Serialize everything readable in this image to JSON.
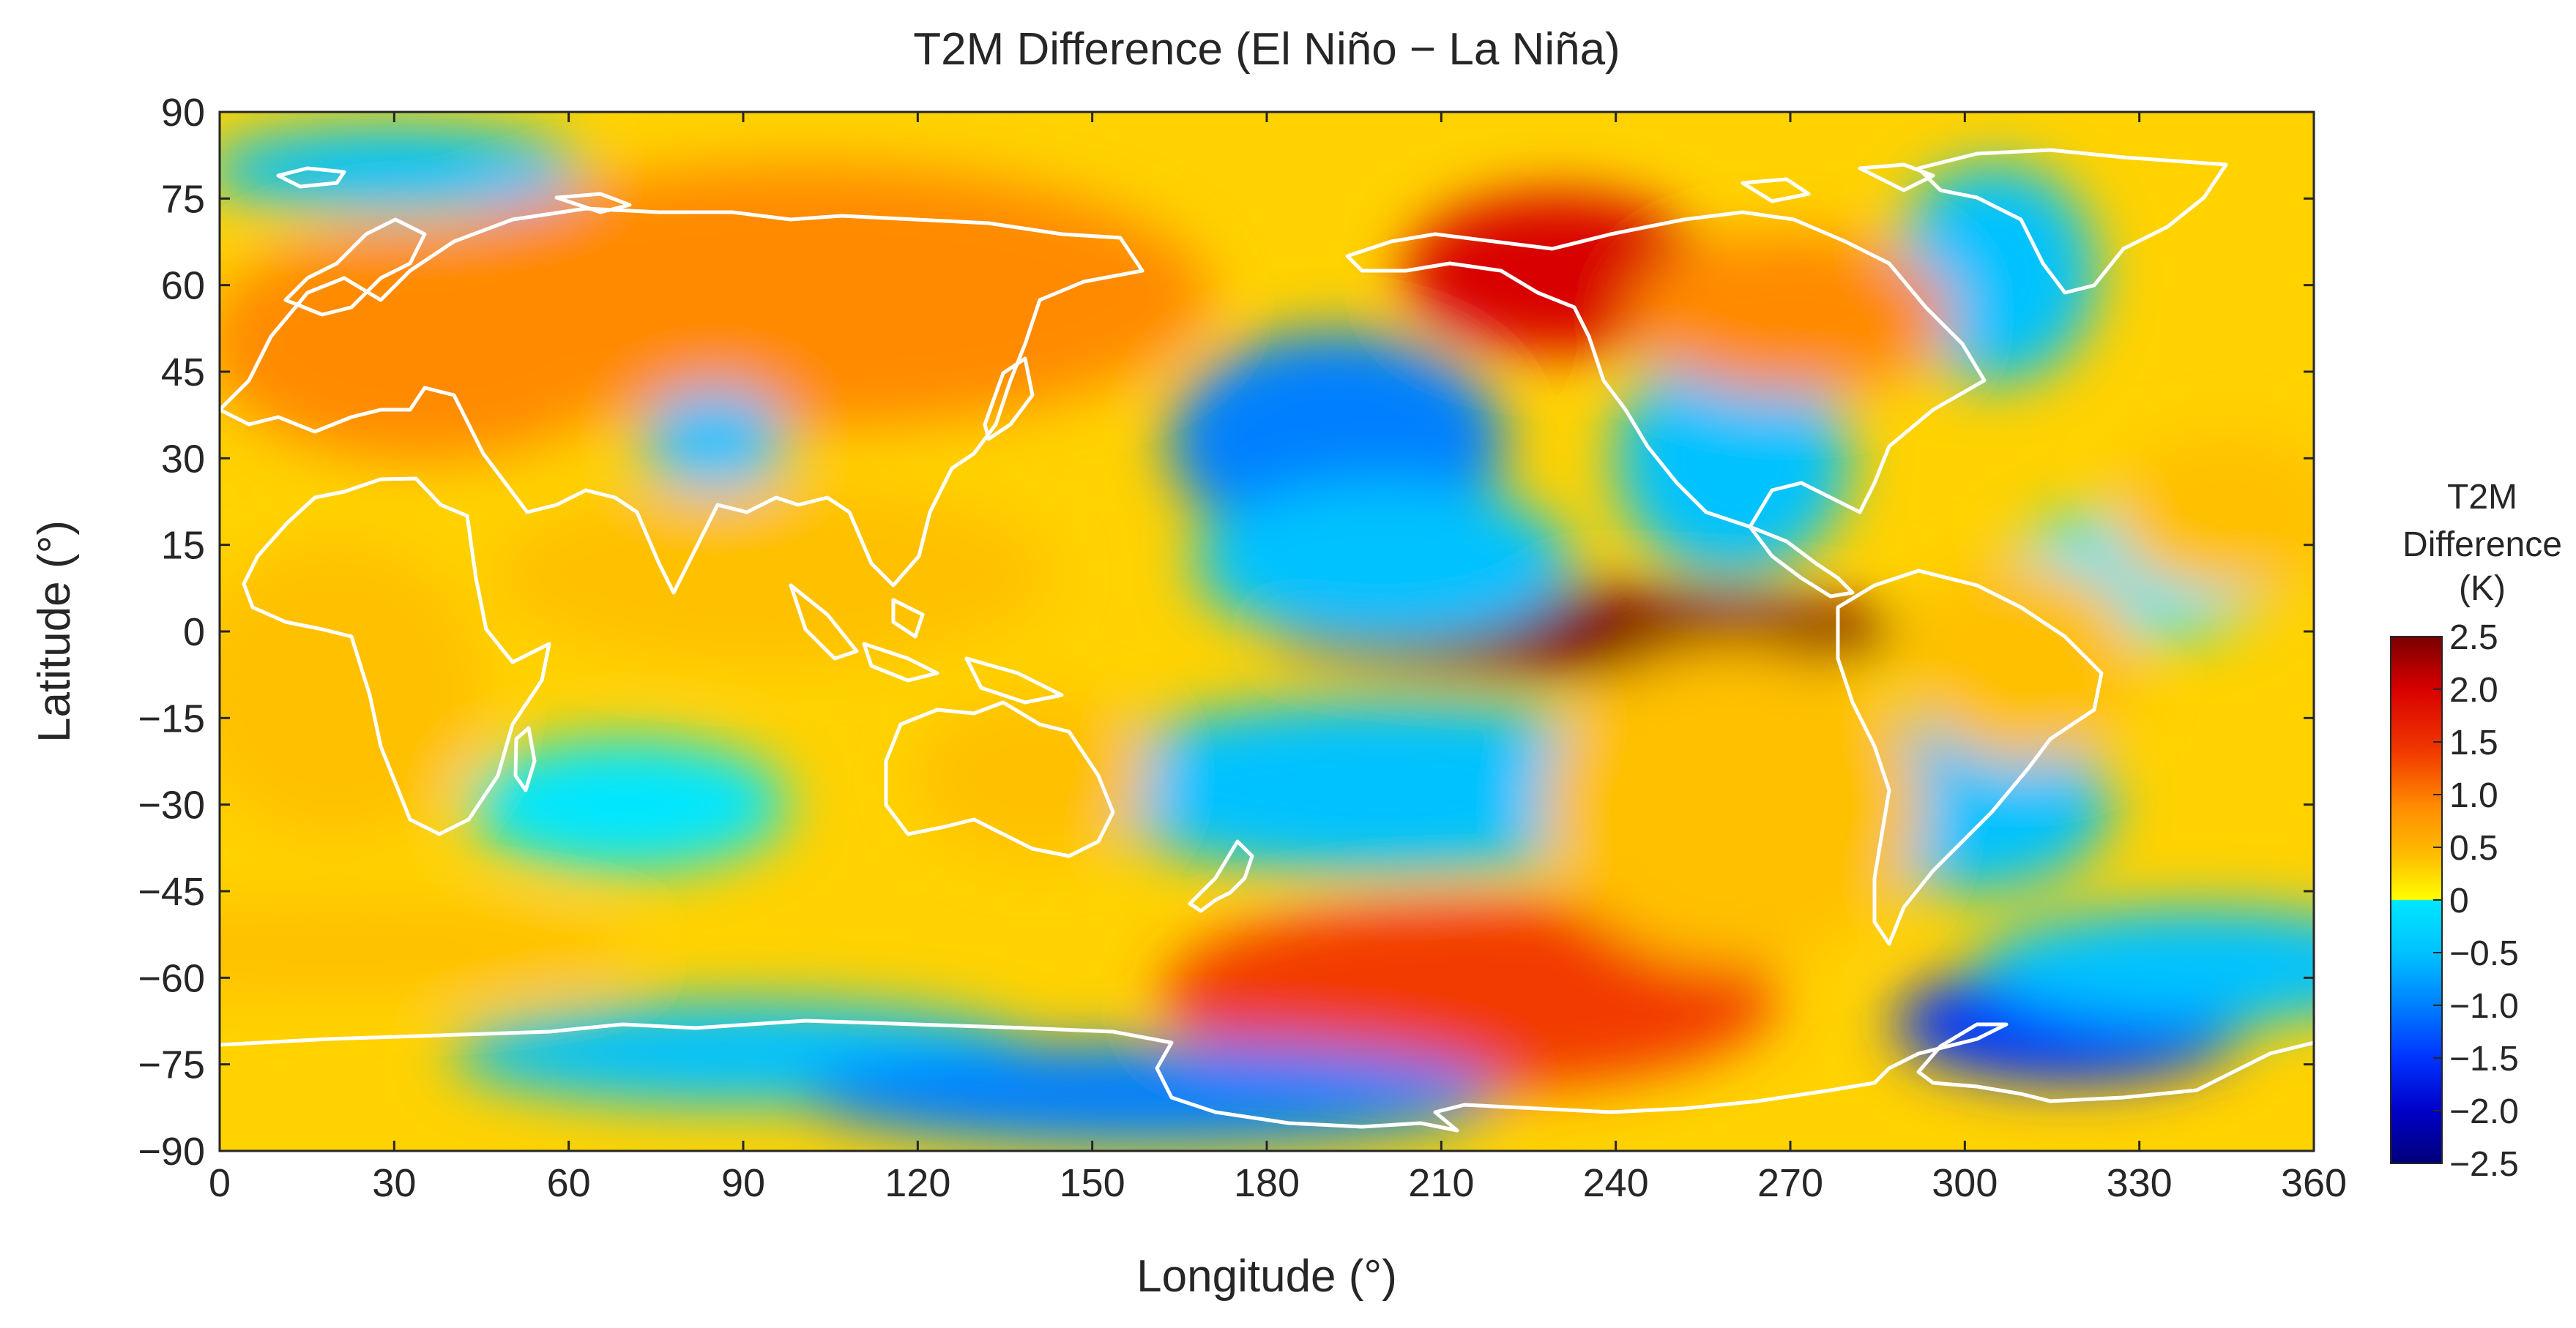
{
  "chart_data": {
    "type": "heatmap",
    "title": "T2M Difference (El Niño − La Niña)",
    "xlabel": "Longitude (°)",
    "ylabel": "Latitude (°)",
    "xlim": [
      0,
      360
    ],
    "ylim": [
      -90,
      90
    ],
    "x_ticks": [
      0,
      30,
      60,
      90,
      120,
      150,
      180,
      210,
      240,
      270,
      300,
      330,
      360
    ],
    "y_ticks": [
      90,
      75,
      60,
      45,
      30,
      15,
      0,
      -15,
      -30,
      -45,
      -60,
      -75,
      -90
    ],
    "x_tick_labels": [
      "0",
      "30",
      "60",
      "90",
      "120",
      "150",
      "180",
      "210",
      "240",
      "270",
      "300",
      "330",
      "360"
    ],
    "y_tick_labels": [
      "90",
      "75",
      "60",
      "45",
      "30",
      "15",
      "0",
      "−15",
      "−30",
      "−45",
      "−60",
      "−75",
      "−90"
    ],
    "colorbar": {
      "title_lines": [
        "T2M",
        "Difference",
        "(K)"
      ],
      "range": [
        -2.5,
        2.5
      ],
      "ticks": [
        2.5,
        2.0,
        1.5,
        1.0,
        0.5,
        0,
        -0.5,
        -1.0,
        -1.5,
        -2.0,
        -2.5
      ],
      "tick_labels": [
        "2.5",
        "2.0",
        "1.5",
        "1.0",
        "0.5",
        "0",
        "−0.5",
        "−1.0",
        "−1.5",
        "−2.0",
        "−2.5"
      ],
      "colors": {
        "2.5": "#7a0000",
        "2.0": "#d80000",
        "1.5": "#f23a00",
        "1.0": "#ff8a00",
        "0.5": "#ffc000",
        "0+": "#ffff00",
        "0-": "#00e6ff",
        "-0.5": "#00c2ff",
        "-1.0": "#0080ff",
        "-1.5": "#0033ff",
        "-2.0": "#0000c8",
        "-2.5": "#00007a"
      }
    },
    "background_color": "#ffd200",
    "anomaly_regions": [
      {
        "lon": 235,
        "lat": 0,
        "value": 2.4
      },
      {
        "lon": 230,
        "lat": 62,
        "value": 2.2
      },
      {
        "lon": 100,
        "lat": 58,
        "value": 1.2
      },
      {
        "lon": 35,
        "lat": 50,
        "value": 1.0
      },
      {
        "lon": 215,
        "lat": -63,
        "value": 1.3
      },
      {
        "lon": 192,
        "lat": 33,
        "value": -1.2
      },
      {
        "lon": 200,
        "lat": 12,
        "value": -0.7
      },
      {
        "lon": 200,
        "lat": -27,
        "value": -0.8
      },
      {
        "lon": 318,
        "lat": -68,
        "value": -1.7
      },
      {
        "lon": 260,
        "lat": 30,
        "value": -0.8
      },
      {
        "lon": 305,
        "lat": 62,
        "value": -0.8
      },
      {
        "lon": 30,
        "lat": 80,
        "value": -0.8
      },
      {
        "lon": 90,
        "lat": -73,
        "value": -0.9
      },
      {
        "lon": 160,
        "lat": -80,
        "value": -1.0
      },
      {
        "lon": 340,
        "lat": -58,
        "value": -0.6
      },
      {
        "lon": 85,
        "lat": 33,
        "value": -0.7
      },
      {
        "lon": 300,
        "lat": -30,
        "value": -0.6
      },
      {
        "lon": 330,
        "lat": 10,
        "value": -0.5
      },
      {
        "lon": 70,
        "lat": -30,
        "value": -0.5
      },
      {
        "lon": 95,
        "lat": 10,
        "value": 0.4
      },
      {
        "lon": 260,
        "lat": -30,
        "value": 0.6
      },
      {
        "lon": 20,
        "lat": -10,
        "value": 0.6
      },
      {
        "lon": 310,
        "lat": -5,
        "value": 0.7
      },
      {
        "lon": 345,
        "lat": 20,
        "value": 0.6
      },
      {
        "lon": 140,
        "lat": -25,
        "value": 0.6
      },
      {
        "lon": 270,
        "lat": 55,
        "value": 1.0
      },
      {
        "lon": 20,
        "lat": -55,
        "value": 0.3
      }
    ]
  }
}
